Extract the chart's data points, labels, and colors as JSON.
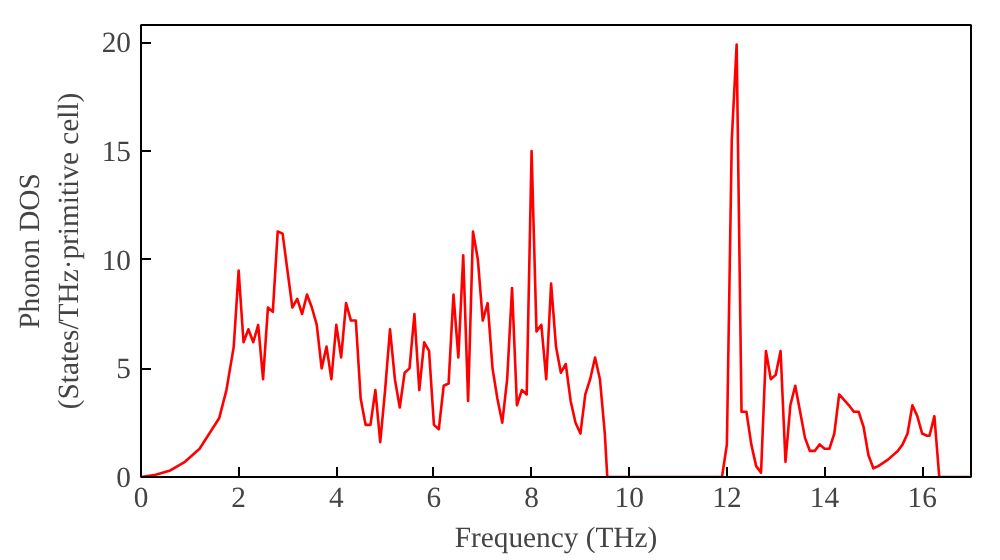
{
  "chart_data": {
    "type": "line",
    "xlabel": "Frequency (THz)",
    "ylabel": "Phonon DOS\n(States/THz·primitive cell)",
    "xlim": [
      0,
      17
    ],
    "ylim": [
      0,
      20.8
    ],
    "xticks": [
      0,
      2,
      4,
      6,
      8,
      10,
      12,
      14,
      16
    ],
    "yticks": [
      0,
      5,
      10,
      15,
      20
    ],
    "grid": false,
    "series": [
      {
        "color": "#ff0000",
        "x": [
          0,
          0.3,
          0.6,
          0.9,
          1.2,
          1.4,
          1.6,
          1.75,
          1.9,
          2.0,
          2.1,
          2.2,
          2.3,
          2.4,
          2.5,
          2.6,
          2.7,
          2.8,
          2.9,
          3.0,
          3.1,
          3.2,
          3.3,
          3.4,
          3.5,
          3.6,
          3.7,
          3.8,
          3.9,
          4.0,
          4.1,
          4.2,
          4.3,
          4.4,
          4.5,
          4.6,
          4.7,
          4.8,
          4.9,
          5.0,
          5.1,
          5.2,
          5.3,
          5.4,
          5.5,
          5.6,
          5.7,
          5.8,
          5.9,
          6.0,
          6.1,
          6.2,
          6.3,
          6.4,
          6.5,
          6.6,
          6.7,
          6.8,
          6.9,
          7.0,
          7.1,
          7.2,
          7.3,
          7.4,
          7.5,
          7.6,
          7.7,
          7.8,
          7.9,
          8.0,
          8.1,
          8.2,
          8.3,
          8.4,
          8.5,
          8.6,
          8.7,
          8.8,
          8.9,
          9.0,
          9.1,
          9.2,
          9.3,
          9.4,
          9.5,
          9.55,
          9.65,
          10.0,
          11.0,
          11.9,
          12.0,
          12.1,
          12.2,
          12.3,
          12.4,
          12.5,
          12.6,
          12.7,
          12.8,
          12.9,
          13.0,
          13.1,
          13.2,
          13.3,
          13.4,
          13.5,
          13.6,
          13.7,
          13.8,
          13.9,
          14.0,
          14.1,
          14.2,
          14.3,
          14.5,
          14.6,
          14.7,
          14.8,
          14.9,
          15.0,
          15.1,
          15.3,
          15.5,
          15.6,
          15.7,
          15.8,
          15.9,
          16.0,
          16.1,
          16.15,
          16.25,
          16.35,
          17.0
        ],
        "values": [
          0,
          0.1,
          0.3,
          0.7,
          1.3,
          2.0,
          2.7,
          4.0,
          6.0,
          9.5,
          6.2,
          6.8,
          6.2,
          7.0,
          4.5,
          7.8,
          7.6,
          11.3,
          11.2,
          9.5,
          7.8,
          8.2,
          7.5,
          8.4,
          7.8,
          7.0,
          5.0,
          6.0,
          4.5,
          7.0,
          5.5,
          8.0,
          7.2,
          7.2,
          3.6,
          2.4,
          2.4,
          4.0,
          1.6,
          4.0,
          6.8,
          4.5,
          3.2,
          4.8,
          5.0,
          7.5,
          4.0,
          6.2,
          5.8,
          2.4,
          2.2,
          4.2,
          4.3,
          8.4,
          5.5,
          10.2,
          3.5,
          11.3,
          10.0,
          7.2,
          8.0,
          5.0,
          3.6,
          2.5,
          4.5,
          8.7,
          3.3,
          4.0,
          3.8,
          15.0,
          6.7,
          7.0,
          4.5,
          8.9,
          6.0,
          4.8,
          5.2,
          3.5,
          2.5,
          2.0,
          3.8,
          4.5,
          5.5,
          4.5,
          2.0,
          0,
          0,
          0,
          0,
          0,
          1.5,
          15.5,
          19.9,
          3.0,
          3.0,
          1.5,
          0.5,
          0.2,
          5.8,
          4.5,
          4.7,
          5.8,
          0.7,
          3.3,
          4.2,
          3.0,
          1.8,
          1.2,
          1.2,
          1.5,
          1.3,
          1.3,
          2.0,
          3.8,
          3.3,
          3.0,
          3.0,
          2.3,
          1.0,
          0.4,
          0.5,
          0.8,
          1.2,
          1.5,
          2.0,
          3.3,
          2.8,
          2.0,
          1.9,
          1.9,
          2.8,
          0,
          0
        ]
      }
    ]
  }
}
